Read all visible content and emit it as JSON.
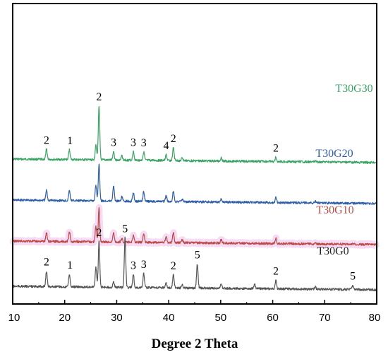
{
  "chart_data": {
    "type": "line",
    "xlabel": "Degree 2 Theta",
    "xlim": [
      10,
      80
    ],
    "x_ticks": [
      "10",
      "20",
      "30",
      "40",
      "50",
      "60",
      "70",
      "80"
    ],
    "series": [
      {
        "name": "T30G30",
        "color": "#3aa464",
        "offset": 4.5,
        "peaks": [
          [
            16.5,
            0.35
          ],
          [
            20.9,
            0.35
          ],
          [
            26.0,
            0.55
          ],
          [
            26.6,
            1.9
          ],
          [
            29.4,
            0.3
          ],
          [
            31.0,
            0.15
          ],
          [
            33.2,
            0.3
          ],
          [
            35.2,
            0.3
          ],
          [
            39.5,
            0.2
          ],
          [
            40.9,
            0.45
          ],
          [
            42.6,
            0.1
          ],
          [
            50.1,
            0.12
          ],
          [
            60.6,
            0.15
          ],
          [
            68.2,
            0.05
          ]
        ],
        "peak_labels": [
          {
            "x": 16.5,
            "text": "2"
          },
          {
            "x": 21.0,
            "text": "1"
          },
          {
            "x": 26.6,
            "text": "2"
          },
          {
            "x": 29.4,
            "text": "3"
          },
          {
            "x": 33.2,
            "text": "3"
          },
          {
            "x": 35.2,
            "text": "3"
          },
          {
            "x": 39.5,
            "text": "4"
          },
          {
            "x": 40.9,
            "text": "2"
          },
          {
            "x": 60.6,
            "text": "2"
          }
        ]
      },
      {
        "name": "T30G20",
        "color": "#2f5fa8",
        "offset": 3.05,
        "peaks": [
          [
            16.5,
            0.35
          ],
          [
            20.9,
            0.35
          ],
          [
            26.0,
            0.55
          ],
          [
            26.6,
            1.3
          ],
          [
            29.4,
            0.55
          ],
          [
            31.0,
            0.15
          ],
          [
            33.2,
            0.3
          ],
          [
            35.2,
            0.35
          ],
          [
            39.5,
            0.2
          ],
          [
            40.9,
            0.35
          ],
          [
            42.6,
            0.1
          ],
          [
            50.1,
            0.12
          ],
          [
            60.6,
            0.2
          ],
          [
            68.2,
            0.06
          ]
        ],
        "peak_labels": []
      },
      {
        "name": "T30G10",
        "color": "#b94b46",
        "offset": 1.6,
        "peaks": [
          [
            16.5,
            0.3
          ],
          [
            20.9,
            0.35
          ],
          [
            26.0,
            0.55
          ],
          [
            26.6,
            1.2
          ],
          [
            29.4,
            0.35
          ],
          [
            31.0,
            0.12
          ],
          [
            33.2,
            0.25
          ],
          [
            35.2,
            0.3
          ],
          [
            39.5,
            0.2
          ],
          [
            40.9,
            0.35
          ],
          [
            42.6,
            0.1
          ],
          [
            50.1,
            0.12
          ],
          [
            60.6,
            0.18
          ],
          [
            68.2,
            0.06
          ]
        ],
        "peak_labels": []
      },
      {
        "name": "T30G0",
        "color": "#555555",
        "offset": 0,
        "peaks": [
          [
            16.5,
            0.55
          ],
          [
            20.9,
            0.45
          ],
          [
            26.0,
            0.7
          ],
          [
            26.6,
            1.6
          ],
          [
            29.4,
            0.2
          ],
          [
            31.6,
            1.75
          ],
          [
            33.2,
            0.45
          ],
          [
            35.2,
            0.5
          ],
          [
            39.5,
            0.15
          ],
          [
            40.9,
            0.45
          ],
          [
            42.6,
            0.1
          ],
          [
            45.5,
            0.85
          ],
          [
            50.1,
            0.15
          ],
          [
            56.5,
            0.15
          ],
          [
            60.6,
            0.3
          ],
          [
            68.2,
            0.08
          ],
          [
            75.4,
            0.15
          ]
        ],
        "peak_labels": [
          {
            "x": 16.5,
            "text": "2"
          },
          {
            "x": 21.0,
            "text": "1"
          },
          {
            "x": 26.6,
            "text": "2"
          },
          {
            "x": 31.6,
            "text": "5"
          },
          {
            "x": 33.2,
            "text": "3"
          },
          {
            "x": 35.2,
            "text": "3"
          },
          {
            "x": 40.9,
            "text": "2"
          },
          {
            "x": 45.5,
            "text": "5"
          },
          {
            "x": 60.6,
            "text": "2"
          },
          {
            "x": 75.4,
            "text": "5"
          }
        ]
      }
    ]
  }
}
